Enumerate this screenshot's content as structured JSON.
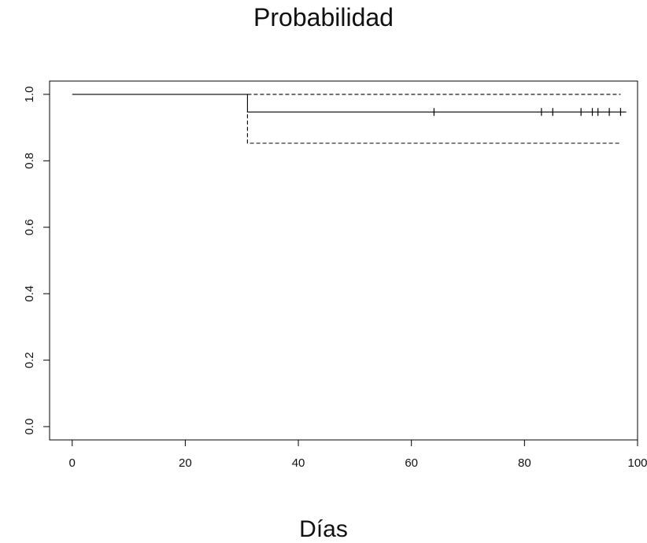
{
  "chart_data": {
    "type": "line",
    "title": "Probabilidad",
    "xlabel": "Días",
    "ylabel": "",
    "xlim": [
      -4,
      100
    ],
    "ylim": [
      -0.04,
      1.04
    ],
    "xticks": [
      0,
      20,
      40,
      60,
      80,
      100
    ],
    "yticks": [
      0.0,
      0.2,
      0.4,
      0.6,
      0.8,
      1.0
    ],
    "xtick_labels": [
      "0",
      "20",
      "40",
      "60",
      "80",
      "100"
    ],
    "ytick_labels": [
      "0.0",
      "0.2",
      "0.4",
      "0.6",
      "0.8",
      "1.0"
    ],
    "grid": false,
    "series": [
      {
        "style": "solid",
        "step": true,
        "x": [
          0,
          31,
          31,
          98
        ],
        "y": [
          1.0,
          1.0,
          0.947,
          0.947
        ]
      },
      {
        "style": "dashed",
        "step": true,
        "x": [
          31,
          97
        ],
        "y": [
          1.0,
          1.0
        ]
      },
      {
        "style": "dashed",
        "step": true,
        "x": [
          31,
          31,
          97
        ],
        "y": [
          0.94,
          0.853,
          0.853
        ]
      }
    ],
    "censor_marks": {
      "y": 0.947,
      "x": [
        64,
        83,
        85,
        90,
        92,
        93,
        95,
        97
      ]
    },
    "colors": {
      "line": "#000000",
      "axis": "#000000"
    }
  }
}
